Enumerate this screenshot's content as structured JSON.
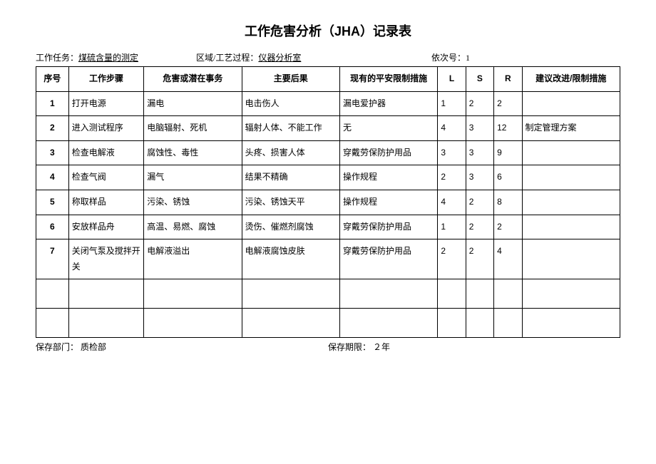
{
  "title": "工作危害分析（JHA）记录表",
  "header": {
    "task_label": "工作任务：",
    "task_value": "煤硫含量的测定",
    "area_label": "区域/工艺过程：",
    "area_value": "仪器分析室",
    "seq_label": "依次号：",
    "seq_value": "1"
  },
  "columns": {
    "seq": "序号",
    "step": "工作步骤",
    "hazard": "危害或潜在事务",
    "conseq": "主要后果",
    "measure": "现有的平安限制措施",
    "L": "L",
    "S": "S",
    "R": "R",
    "rec": "建议改进/限制措施"
  },
  "rows": [
    {
      "seq": "1",
      "step": "打开电源",
      "hazard": "漏电",
      "conseq": "电击伤人",
      "measure": "漏电爱护器",
      "L": "1",
      "S": "2",
      "R": "2",
      "rec": ""
    },
    {
      "seq": "2",
      "step": "进入测试程序",
      "hazard": "电脑辐射、死机",
      "conseq": "辐射人体、不能工作",
      "measure": "无",
      "L": "4",
      "S": "3",
      "R": "12",
      "rec": "制定管理方案"
    },
    {
      "seq": "3",
      "step": "检查电解液",
      "hazard": "腐蚀性、毒性",
      "conseq": "头疼、损害人体",
      "measure": "穿戴劳保防护用品",
      "L": "3",
      "S": "3",
      "R": "9",
      "rec": ""
    },
    {
      "seq": "4",
      "step": "检查气阀",
      "hazard": "漏气",
      "conseq": "结果不精确",
      "measure": "操作规程",
      "L": "2",
      "S": "3",
      "R": "6",
      "rec": ""
    },
    {
      "seq": "5",
      "step": "称取样品",
      "hazard": "污染、锈蚀",
      "conseq": "污染、锈蚀天平",
      "measure": "操作规程",
      "L": "4",
      "S": "2",
      "R": "8",
      "rec": ""
    },
    {
      "seq": "6",
      "step": "安放样品舟",
      "hazard": "高温、易燃、腐蚀",
      "conseq": "烫伤、催燃剂腐蚀",
      "measure": "穿戴劳保防护用品",
      "L": "1",
      "S": "2",
      "R": "2",
      "rec": ""
    },
    {
      "seq": "7",
      "step": "关闭气泵及搅拌开关",
      "hazard": "电解液溢出",
      "conseq": "电解液腐蚀皮肤",
      "measure": "穿戴劳保防护用品",
      "L": "2",
      "S": "2",
      "R": "4",
      "rec": ""
    }
  ],
  "footer": {
    "dept_label": "保存部门：",
    "dept_value": "质检部",
    "period_label": "保存期限：",
    "period_value": "２年"
  }
}
